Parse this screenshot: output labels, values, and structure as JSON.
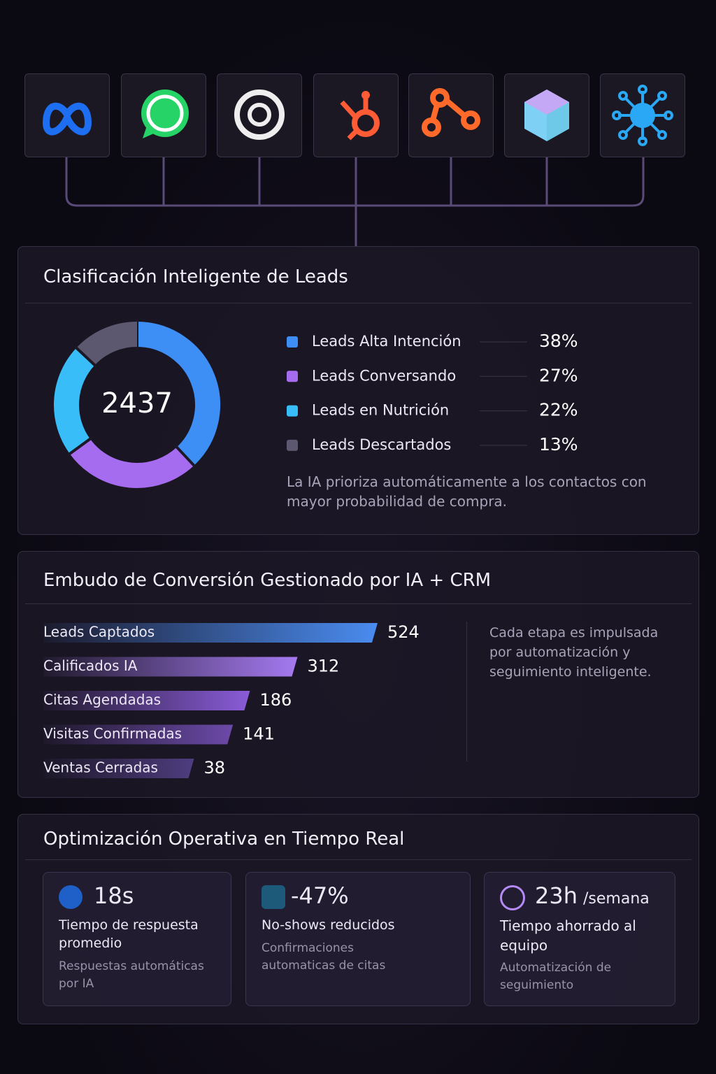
{
  "chart_data": [
    {
      "type": "donut",
      "title": "Clasificación Inteligente de Leads",
      "center_label": "2437",
      "categories": [
        "Leads Alta Intención",
        "Leads Conversando",
        "Leads en Nutrición",
        "Leads Descartados"
      ],
      "values": [
        38,
        27,
        22,
        13
      ],
      "value_labels": [
        "38%",
        "27%",
        "22%",
        "13%"
      ],
      "colors": [
        "#3d8ef5",
        "#a66cf0",
        "#38bdf8",
        "#5b5870"
      ],
      "note": "La IA prioriza automáticamente a los contactos con mayor probabilidad de compra."
    },
    {
      "type": "funnel",
      "title": "Embudo de Conversión Gestionado por IA + CRM",
      "categories": [
        "Leads Captados",
        "Calificados IA",
        "Citas Agendadas",
        "Visitas Confirmadas",
        "Ventas Cerradas"
      ],
      "values": [
        524,
        312,
        186,
        141,
        38
      ],
      "colors": [
        "#4a8cf0",
        "#a57af0",
        "#8a5cd8",
        "#6c4aa8",
        "#4f3d80"
      ],
      "note": "Cada etapa es impulsada por automatización y seguimiento inteligente."
    }
  ],
  "metrics": {
    "title": "Optimización Operativa en Tiempo Real",
    "cards": [
      {
        "value": "18s",
        "label": "Tiempo de respuesta promedio",
        "detail": "Respuestas automáticas por IA"
      },
      {
        "value": "-47%",
        "label": "No-shows reducidos",
        "detail": "Confirmaciones automaticas de citas"
      },
      {
        "value": "23h",
        "unit": "/semana",
        "label": "Tiempo ahorrado al equipo",
        "detail": "Automatización de seguimiento"
      }
    ]
  }
}
